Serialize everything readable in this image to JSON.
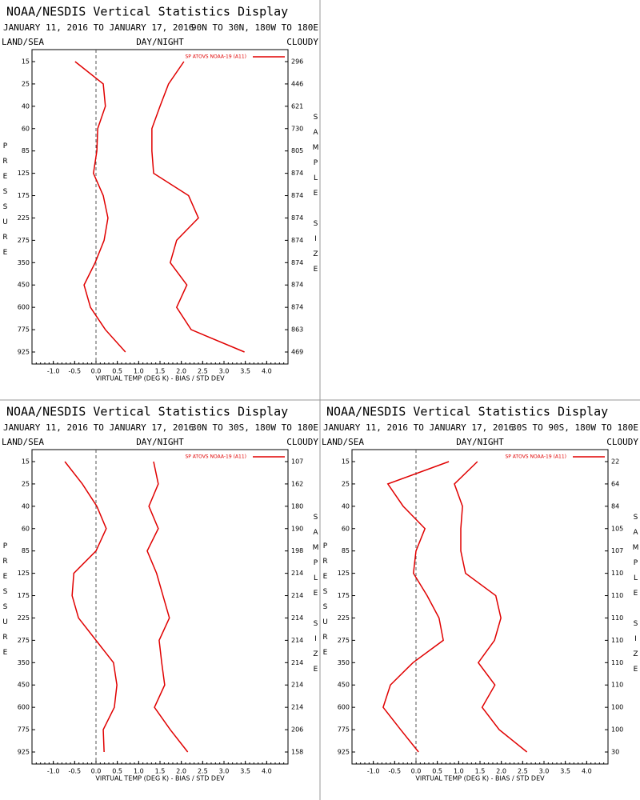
{
  "chart_data": [
    {
      "type": "line",
      "title": "NOAA/NESDIS Vertical Statistics Display",
      "subtitle": "JANUARY 11, 2016 TO JANUARY 17, 2016",
      "region": "90N TO 30N, 180W TO 180E",
      "left_header": "LAND/SEA",
      "center_header": "DAY/NIGHT",
      "right_header": "CLOUDY",
      "legend": "SP ATOVS NOAA-19 (A11)",
      "x_label": "VIRTUAL TEMP (DEG K) - BIAS / STD DEV",
      "y_label": "PRESSURE",
      "y2_label": "SAMPLE SIZE",
      "categories": [
        "15",
        "25",
        "40",
        "60",
        "85",
        "125",
        "175",
        "225",
        "275",
        "350",
        "450",
        "600",
        "775",
        "925"
      ],
      "sample_sizes": [
        296,
        446,
        621,
        730,
        805,
        874,
        874,
        874,
        874,
        874,
        874,
        874,
        863,
        469
      ],
      "series": [
        {
          "color": "#e00000",
          "values": [
            -0.49,
            0.17,
            0.22,
            0.04,
            0.02,
            -0.06,
            0.17,
            0.28,
            0.19,
            -0.02,
            -0.28,
            -0.13,
            0.22,
            0.69
          ]
        },
        {
          "color": "#e00000",
          "values": [
            2.06,
            1.7,
            1.5,
            1.31,
            1.31,
            1.35,
            2.17,
            2.4,
            1.89,
            1.74,
            2.13,
            1.89,
            2.23,
            3.48
          ]
        }
      ],
      "xlim": [
        -1.5,
        4.5
      ],
      "xticks": [
        {
          "value": -1,
          "label": "-1.0"
        },
        {
          "value": -0.5,
          "label": "-0.5"
        },
        {
          "value": 0,
          "label": "0.0"
        },
        {
          "value": 0.5,
          "label": "0.5"
        },
        {
          "value": 1,
          "label": "1.0"
        },
        {
          "value": 1.5,
          "label": "1.5"
        },
        {
          "value": 2,
          "label": "2.0"
        },
        {
          "value": 2.5,
          "label": "2.5"
        },
        {
          "value": 3,
          "label": "3.0"
        },
        {
          "value": 3.5,
          "label": "3.5"
        },
        {
          "value": 4,
          "label": "4.0"
        }
      ],
      "zero_line": 0
    },
    {
      "type": "line",
      "title": "NOAA/NESDIS Vertical Statistics Display",
      "subtitle": "JANUARY 11, 2016 TO JANUARY 17, 2016",
      "region": "30N TO 30S, 180W TO 180E",
      "left_header": "LAND/SEA",
      "center_header": "DAY/NIGHT",
      "right_header": "CLOUDY",
      "legend": "SP ATOVS NOAA-19 (A11)",
      "x_label": "VIRTUAL TEMP (DEG K) - BIAS / STD DEV",
      "y_label": "PRESSURE",
      "y2_label": "SAMPLE SIZE",
      "categories": [
        "15",
        "25",
        "40",
        "60",
        "85",
        "125",
        "175",
        "225",
        "275",
        "350",
        "450",
        "600",
        "775",
        "925"
      ],
      "sample_sizes": [
        107,
        162,
        180,
        190,
        198,
        214,
        214,
        214,
        214,
        214,
        214,
        214,
        206,
        158
      ],
      "series": [
        {
          "color": "#e00000",
          "values": [
            -0.73,
            -0.32,
            0.02,
            0.24,
            0,
            -0.52,
            -0.56,
            -0.41,
            0,
            0.41,
            0.49,
            0.43,
            0.17,
            0.19
          ]
        },
        {
          "color": "#e00000",
          "values": [
            1.35,
            1.46,
            1.24,
            1.46,
            1.2,
            1.42,
            1.57,
            1.72,
            1.48,
            1.54,
            1.61,
            1.37,
            1.74,
            2.15
          ]
        }
      ],
      "xlim": [
        -1.5,
        4.5
      ],
      "xticks": [
        {
          "value": -1,
          "label": "-1.0"
        },
        {
          "value": -0.5,
          "label": "-0.5"
        },
        {
          "value": 0,
          "label": "0.0"
        },
        {
          "value": 0.5,
          "label": "0.5"
        },
        {
          "value": 1,
          "label": "1.0"
        },
        {
          "value": 1.5,
          "label": "1.5"
        },
        {
          "value": 2,
          "label": "2.0"
        },
        {
          "value": 2.5,
          "label": "2.5"
        },
        {
          "value": 3,
          "label": "3.0"
        },
        {
          "value": 3.5,
          "label": "3.5"
        },
        {
          "value": 4,
          "label": "4.0"
        }
      ],
      "zero_line": 0
    },
    {
      "type": "line",
      "title": "NOAA/NESDIS Vertical Statistics Display",
      "subtitle": "JANUARY 11, 2016 TO JANUARY 17, 2016",
      "region": "30S TO 90S, 180W TO 180E",
      "left_header": "LAND/SEA",
      "center_header": "DAY/NIGHT",
      "right_header": "CLOUDY",
      "legend": "SP ATOVS NOAA-19 (A11)",
      "x_label": "VIRTUAL TEMP (DEG K) - BIAS / STD DEV",
      "y_label": "PRESSURE",
      "y2_label": "SAMPLE SIZE",
      "categories": [
        "15",
        "25",
        "40",
        "60",
        "85",
        "125",
        "175",
        "225",
        "275",
        "350",
        "450",
        "600",
        "775",
        "925"
      ],
      "sample_sizes": [
        22,
        64,
        84,
        105,
        107,
        110,
        110,
        110,
        110,
        110,
        110,
        100,
        100,
        30
      ],
      "series": [
        {
          "color": "#e00000",
          "values": [
            0.77,
            -0.66,
            -0.3,
            0.21,
            0,
            -0.06,
            0.26,
            0.54,
            0.64,
            -0.07,
            -0.6,
            -0.77,
            -0.36,
            0.06
          ]
        },
        {
          "color": "#e00000",
          "values": [
            1.44,
            0.9,
            1.09,
            1.05,
            1.05,
            1.16,
            1.87,
            1.99,
            1.84,
            1.46,
            1.85,
            1.55,
            1.95,
            2.6
          ]
        }
      ],
      "xlim": [
        -1.5,
        4.5
      ],
      "xticks": [
        {
          "value": -1,
          "label": "-1.0"
        },
        {
          "value": -0.5,
          "label": "-0.5"
        },
        {
          "value": 0,
          "label": "0.0"
        },
        {
          "value": 0.5,
          "label": "0.5"
        },
        {
          "value": 1,
          "label": "1.0"
        },
        {
          "value": 1.5,
          "label": "1.5"
        },
        {
          "value": 2,
          "label": "2.0"
        },
        {
          "value": 2.5,
          "label": "2.5"
        },
        {
          "value": 3,
          "label": "3.0"
        },
        {
          "value": 3.5,
          "label": "3.5"
        },
        {
          "value": 4,
          "label": "4.0"
        }
      ],
      "zero_line": 0
    }
  ]
}
